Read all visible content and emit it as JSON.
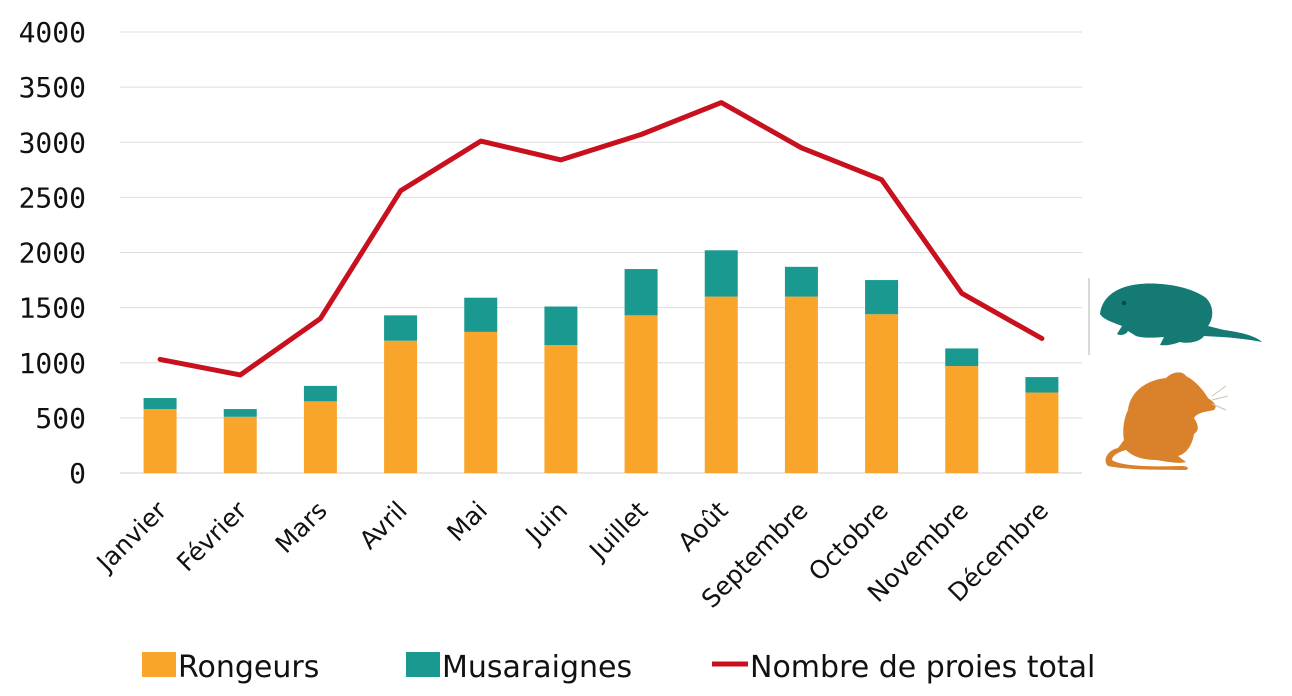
{
  "chart_data": {
    "type": "bar",
    "stacked": true,
    "categories": [
      "Janvier",
      "Février",
      "Mars",
      "Avril",
      "Mai",
      "Juin",
      "Juillet",
      "Août",
      "Septembre",
      "Octobre",
      "Novembre",
      "Décembre"
    ],
    "series": [
      {
        "name": "Rongeurs",
        "type": "bar",
        "color": "#F9A52C",
        "values": [
          580,
          510,
          650,
          1200,
          1280,
          1160,
          1430,
          1600,
          1600,
          1440,
          970,
          730
        ]
      },
      {
        "name": "Musaraignes",
        "type": "bar",
        "color": "#1A9990",
        "values": [
          100,
          70,
          140,
          230,
          310,
          350,
          420,
          420,
          270,
          310,
          160,
          140
        ]
      },
      {
        "name": "Nombre de proies total",
        "type": "line",
        "color": "#C8101E",
        "values": [
          1030,
          890,
          1400,
          2560,
          3010,
          2840,
          3070,
          3360,
          2950,
          2660,
          1630,
          1220
        ]
      }
    ],
    "yticks": [
      "0",
      "500",
      "1000",
      "1500",
      "2000",
      "2500",
      "3000",
      "3500",
      "4000"
    ],
    "ylim": [
      0,
      4000
    ],
    "grid": true,
    "legend_position": "bottom",
    "icons": [
      "shrew-icon",
      "mouse-icon"
    ]
  }
}
